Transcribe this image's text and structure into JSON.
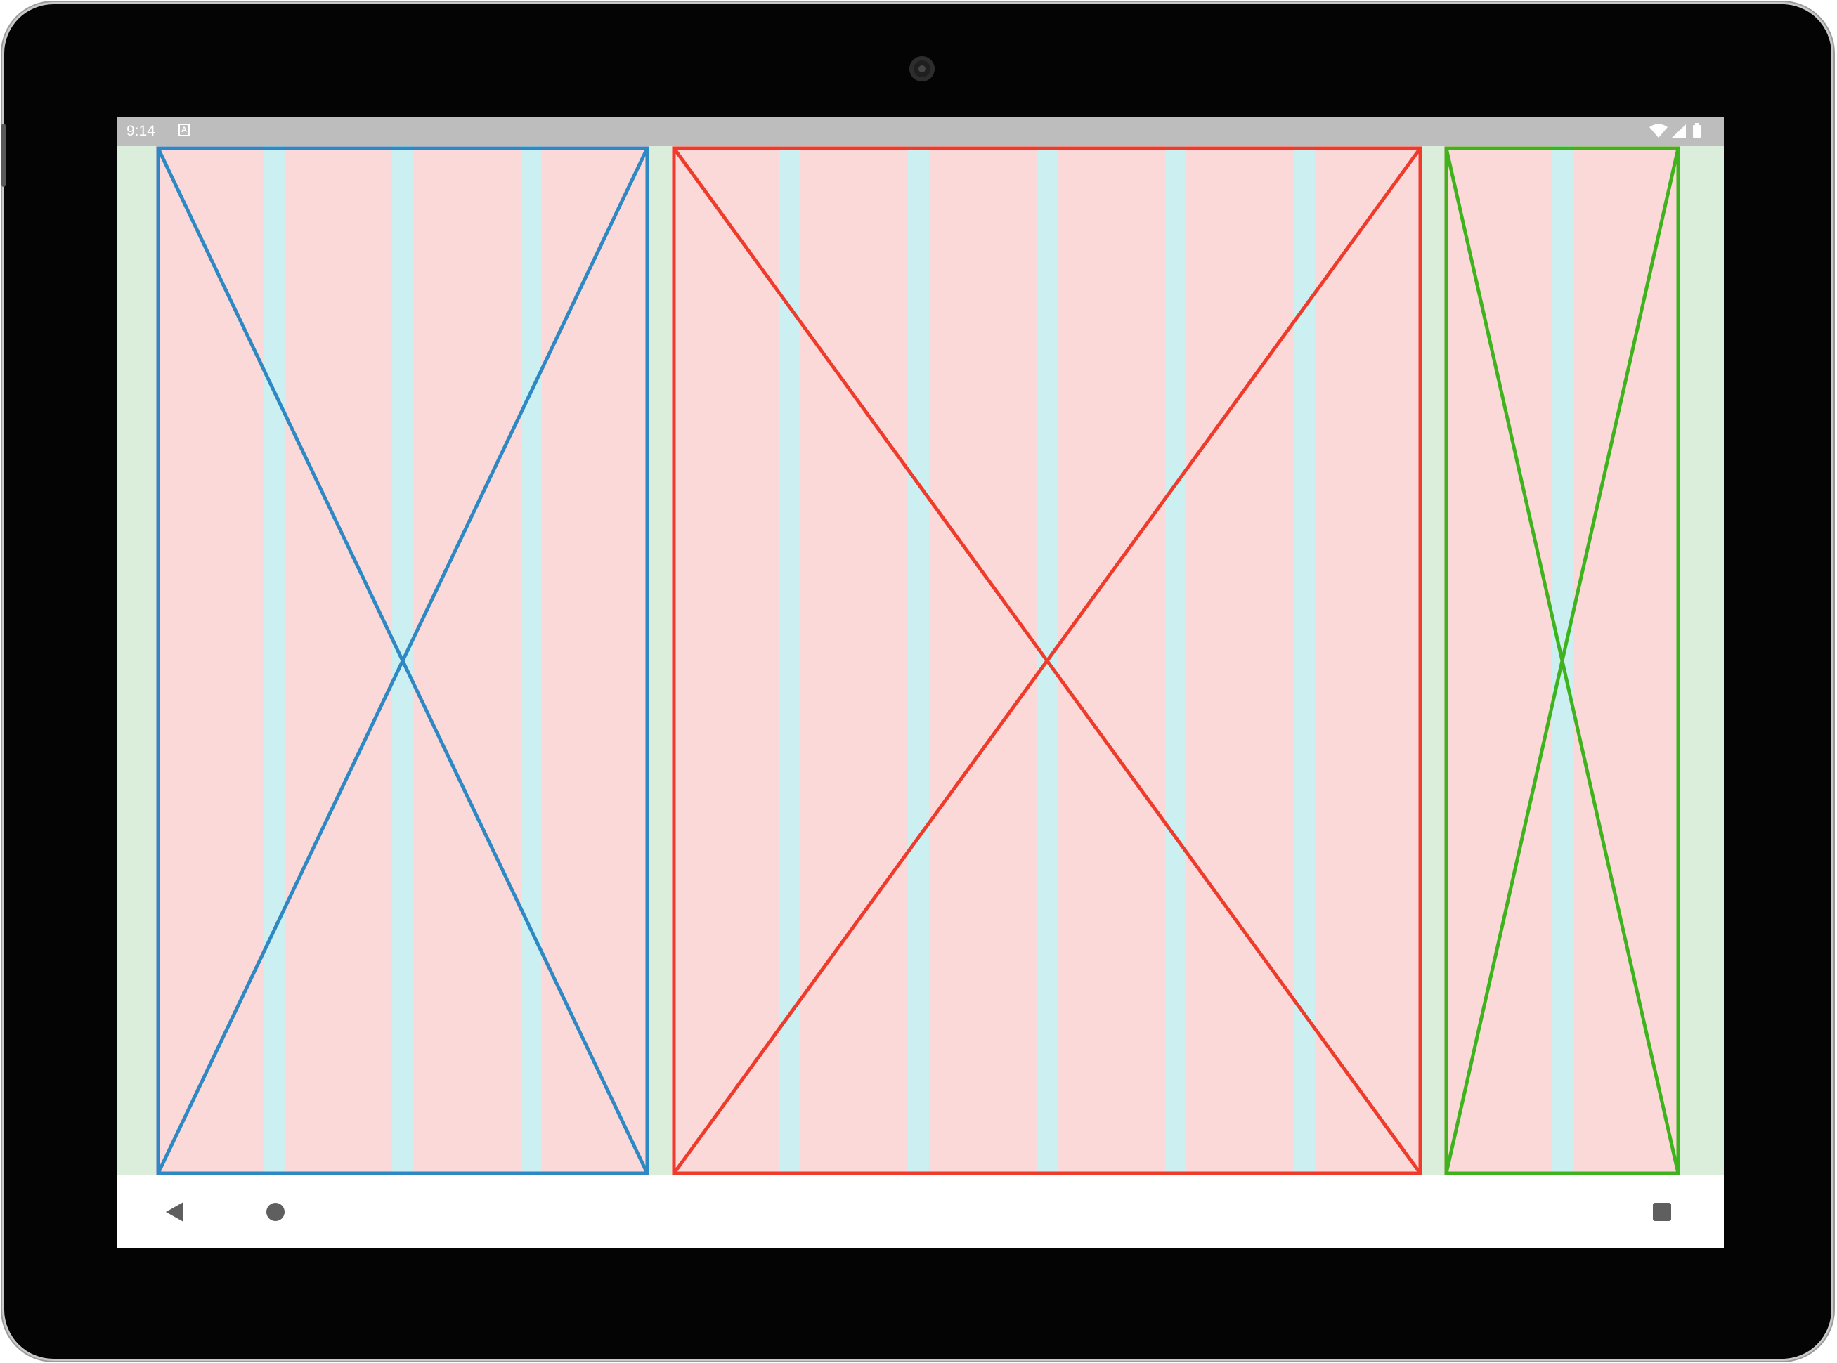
{
  "status_bar": {
    "time": "9:14",
    "notification_icon": "a-notification-icon",
    "icons": [
      "wifi-icon",
      "signal-icon",
      "battery-icon"
    ],
    "color": "#bdbdbd"
  },
  "layout_grid": {
    "margin_color": "#dbeedc",
    "column_color": "#fbd9d8",
    "gutter_color": "#ccf0f1",
    "panes": [
      {
        "name": "left-pane",
        "columns": 4,
        "color": "#2e88c4",
        "highlight_color": "#14b5e6"
      },
      {
        "name": "center-pane",
        "columns": 6,
        "color": "#ee3b2b",
        "highlight_color": "#d0524a"
      },
      {
        "name": "right-pane",
        "columns": 2,
        "color": "#3fb31e",
        "highlight_color": "#2ee87c"
      }
    ]
  },
  "navigation_bar": {
    "buttons": [
      "back-icon",
      "home-icon",
      "recents-icon"
    ],
    "icon_color": "#5f5f5f"
  }
}
